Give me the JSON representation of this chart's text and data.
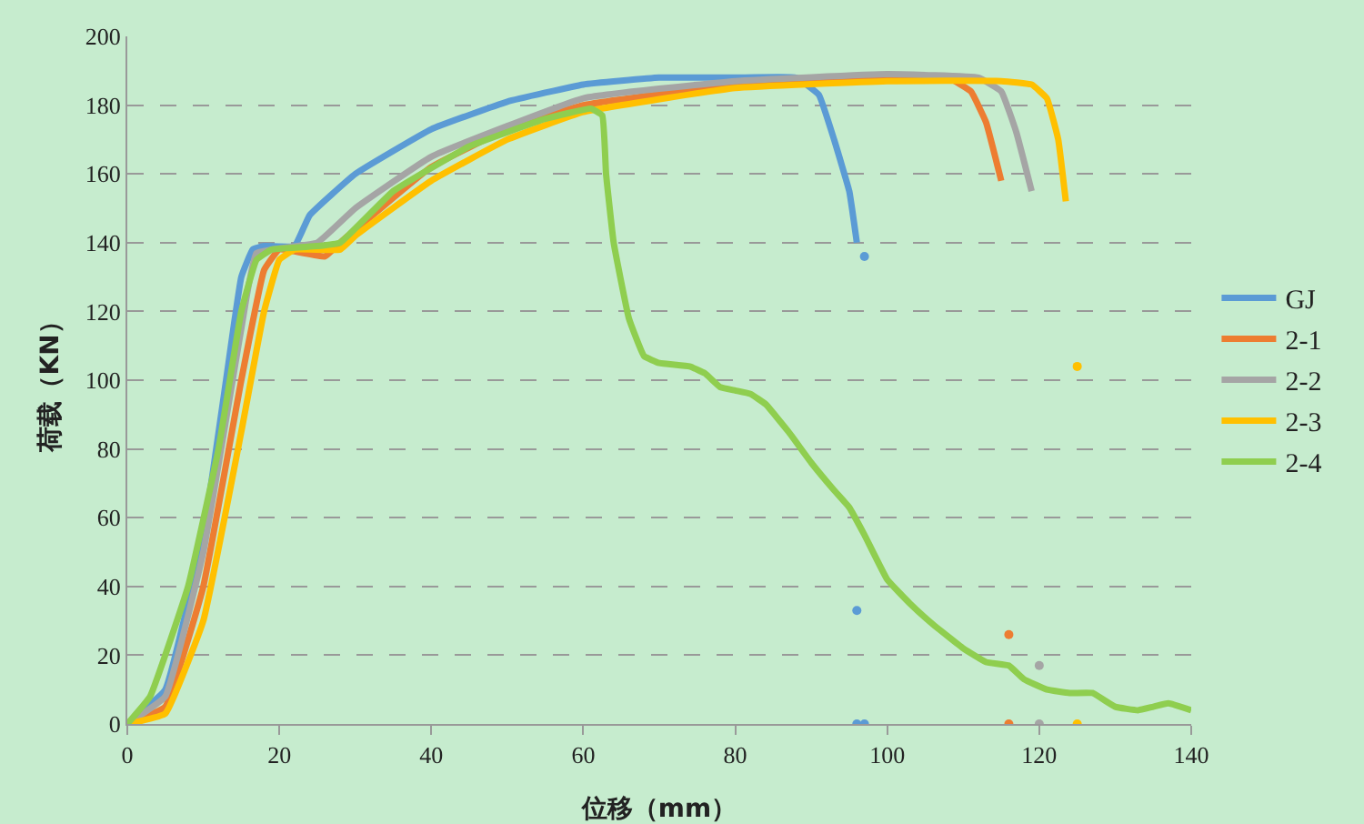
{
  "chart_data": {
    "type": "line",
    "xlabel": "位移（mm）",
    "ylabel": "荷载（KN）",
    "xlim": [
      0,
      140
    ],
    "xticks": [
      0,
      20,
      40,
      60,
      80,
      100,
      120,
      140
    ],
    "ylim": [
      0,
      200
    ],
    "yticks": [
      0,
      20,
      40,
      60,
      80,
      100,
      120,
      140,
      160,
      180,
      200
    ],
    "grid": "y",
    "legend": "right",
    "marker": "none",
    "line_style": "solid",
    "series": [
      {
        "name": "GJ",
        "color": "#5b9bd5",
        "x": [
          0,
          5,
          10,
          13,
          15,
          16.5,
          18,
          22,
          24,
          30,
          40,
          50,
          60,
          70,
          80,
          88,
          91,
          93,
          95,
          96
        ],
        "values": [
          0,
          10,
          55,
          100,
          130,
          138,
          139,
          139,
          148,
          160,
          173,
          181,
          186,
          188,
          188,
          188,
          183,
          170,
          155,
          140
        ]
      },
      {
        "name": "2-1",
        "color": "#ed7d31",
        "x": [
          0,
          5,
          10,
          15,
          18,
          20,
          26,
          28,
          40,
          50,
          60,
          80,
          100,
          108,
          111,
          113,
          115
        ],
        "values": [
          0,
          5,
          40,
          100,
          132,
          138,
          136,
          140,
          162,
          173,
          180,
          186,
          188,
          188,
          184,
          175,
          158
        ]
      },
      {
        "name": "2-2",
        "color": "#a5a5a5",
        "x": [
          0,
          5,
          10,
          15,
          17,
          25,
          30,
          40,
          60,
          80,
          100,
          112,
          115,
          117,
          119
        ],
        "values": [
          0,
          8,
          50,
          115,
          137,
          140,
          150,
          165,
          182,
          187,
          189,
          188,
          184,
          172,
          155
        ]
      },
      {
        "name": "2-3",
        "color": "#ffc000",
        "x": [
          0,
          5,
          10,
          15,
          18,
          20,
          22,
          28,
          30,
          40,
          50,
          60,
          80,
          100,
          115,
          119,
          121,
          122.5,
          123.5
        ],
        "values": [
          0,
          3,
          30,
          85,
          120,
          135,
          138,
          138,
          142,
          158,
          170,
          178,
          185,
          187,
          187,
          186,
          182,
          170,
          152
        ]
      },
      {
        "name": "2-4",
        "color": "#8fce4f",
        "x": [
          0,
          3,
          8,
          12,
          15,
          17,
          19,
          25,
          28,
          35,
          45,
          55,
          61,
          62.5,
          63,
          64,
          66,
          68,
          70,
          74,
          76,
          78,
          80,
          82,
          84,
          87,
          90,
          93,
          95,
          97,
          100,
          103,
          106,
          110,
          113,
          116,
          118,
          121,
          124,
          127,
          130,
          133,
          135,
          137,
          140
        ],
        "values": [
          0,
          8,
          40,
          80,
          120,
          135,
          138,
          139,
          140,
          155,
          168,
          176,
          179,
          177,
          160,
          140,
          118,
          107,
          105,
          104,
          102,
          98,
          97,
          96,
          93,
          85,
          76,
          68,
          63,
          55,
          42,
          35,
          29,
          22,
          18,
          17,
          13,
          10,
          9,
          9,
          5,
          4,
          5,
          6,
          4
        ]
      },
      {
        "type": "scatter",
        "marker": "circle",
        "color": "#5b9bd5",
        "x": [
          97,
          96,
          96,
          97
        ],
        "values": [
          136,
          33,
          0,
          0
        ]
      },
      {
        "type": "scatter",
        "marker": "circle",
        "color": "#ed7d31",
        "x": [
          116,
          116
        ],
        "values": [
          26,
          0
        ]
      },
      {
        "type": "scatter",
        "marker": "circle",
        "color": "#a5a5a5",
        "x": [
          120,
          120
        ],
        "values": [
          17,
          0
        ]
      },
      {
        "type": "scatter",
        "marker": "circle",
        "color": "#ffc000",
        "x": [
          125,
          125
        ],
        "values": [
          104,
          0
        ]
      }
    ]
  }
}
